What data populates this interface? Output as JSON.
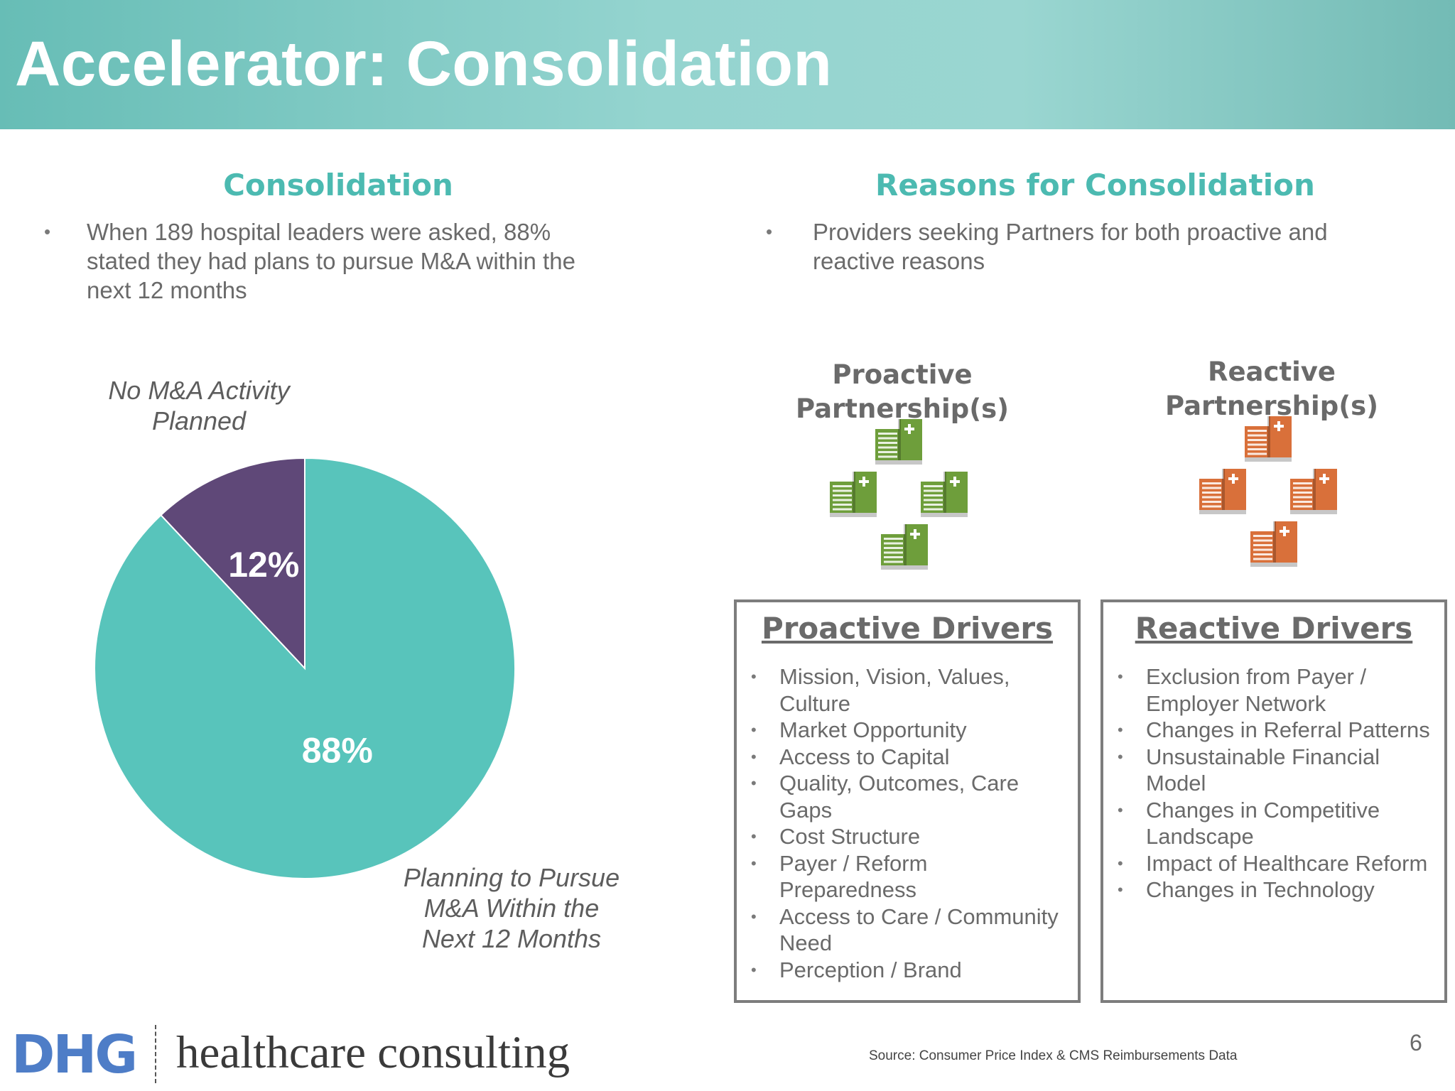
{
  "header": {
    "title": "Accelerator: Consolidation"
  },
  "left": {
    "heading": "Consolidation",
    "bullet_lines": [
      "When 189 hospital leaders were asked, 88%",
      "stated they had plans to pursue M&A within the",
      "next 12 months"
    ],
    "no_activity_label": [
      "No M&A Activity",
      "Planned"
    ],
    "planning_label": [
      "Planning to Pursue",
      "M&A Within the",
      "Next 12 Months"
    ]
  },
  "right": {
    "heading": "Reasons for Consolidation",
    "bullet_lines": [
      "Providers seeking Partners for both proactive and",
      "reactive reasons"
    ],
    "proactive_title": [
      "Proactive",
      "Partnership(s)"
    ],
    "reactive_title": [
      "Reactive",
      "Partnership(s)"
    ],
    "proactive_drivers": {
      "heading": "Proactive Drivers",
      "items": [
        [
          "Mission, Vision, Values,",
          "Culture"
        ],
        [
          "Market Opportunity"
        ],
        [
          "Access to Capital"
        ],
        [
          "Quality, Outcomes, Care",
          "Gaps"
        ],
        [
          "Cost Structure"
        ],
        [
          "Payer / Reform",
          "Preparedness"
        ],
        [
          "Access to Care / Community",
          "Need"
        ],
        [
          "Perception / Brand"
        ]
      ]
    },
    "reactive_drivers": {
      "heading": "Reactive Drivers",
      "items": [
        [
          "Exclusion from Payer /",
          "Employer Network"
        ],
        [
          "Changes in Referral Patterns"
        ],
        [
          "Unsustainable Financial",
          "Model"
        ],
        [
          "Changes in Competitive",
          "Landscape"
        ],
        [
          "Impact of Healthcare Reform"
        ],
        [
          "Changes in Technology"
        ]
      ]
    }
  },
  "chart_data": {
    "type": "pie",
    "slices": [
      {
        "label": "No M&A Activity Planned",
        "value": 12,
        "display": "12%",
        "color": "#5f4878"
      },
      {
        "label": "Planning to Pursue M&A Within the Next 12 Months",
        "value": 88,
        "display": "88%",
        "color": "#58c4bb"
      }
    ],
    "start_angle_deg": 0,
    "direction": "counterclockwise"
  },
  "colors": {
    "accent_teal": "#4cbab1",
    "proactive_icon": "#6e9e3b",
    "reactive_icon": "#d9703a",
    "logo_blue": "#4e7dc7"
  },
  "icons": {
    "proactive": "hospital-building-icon",
    "reactive": "hospital-building-icon"
  },
  "footer": {
    "logo": "DHG",
    "tagline": "healthcare consulting",
    "source": "Source:  Consumer Price Index & CMS Reimbursements Data",
    "page_number": "6"
  }
}
